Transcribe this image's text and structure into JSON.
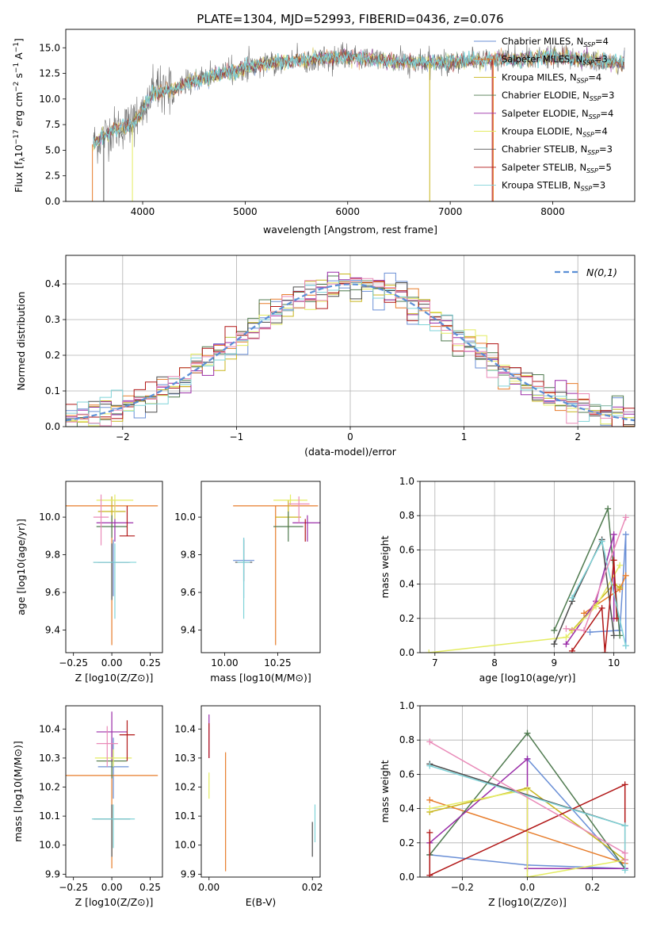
{
  "figure_title": "PLATE=1304, MJD=52993, FIBERID=0436, z=0.076",
  "colors": {
    "chabrier_miles": "#6a8fd6",
    "salpeter_miles": "#e77c2a",
    "kroupa_miles": "#c8b51c",
    "chabrier_elodie": "#4f7a4f",
    "salpeter_elodie": "#9a2ca8",
    "kroupa_elodie": "#e4ec62",
    "chabrier_stelib": "#4d4d4d",
    "salpeter_stelib": "#b11717",
    "kroupa_stelib": "#7fd3d8",
    "pink": "#e98ab8",
    "normal_curve": "#5b8fd6"
  },
  "chart_data": [
    {
      "id": "spectrum",
      "type": "line",
      "title": "PLATE=1304, MJD=52993, FIBERID=0436, z=0.076",
      "xlabel": "wavelength [Angstrom, rest frame]",
      "ylabel": "Flux [f_λ10^{-17} erg cm^{-2} s^{-1} A^{-1}]",
      "xlim": [
        3250,
        8800
      ],
      "ylim": [
        0,
        16.8
      ],
      "xticks": [
        4000,
        5000,
        6000,
        7000,
        8000
      ],
      "yticks": [
        0.0,
        2.5,
        5.0,
        7.5,
        10.0,
        12.5,
        15.0
      ],
      "grid": false,
      "legend_position": "top-right",
      "legend": [
        {
          "name": "Chabrier MILES",
          "nssp": "4"
        },
        {
          "name": "Salpeter MILES",
          "nssp": "3"
        },
        {
          "name": "Kroupa MILES",
          "nssp": "4"
        },
        {
          "name": "Chabrier ELODIE",
          "nssp": "3"
        },
        {
          "name": "Salpeter ELODIE",
          "nssp": "4"
        },
        {
          "name": "Kroupa ELODIE",
          "nssp": "4"
        },
        {
          "name": "Chabrier STELIB",
          "nssp": "3"
        },
        {
          "name": "Salpeter STELIB",
          "nssp": "5"
        },
        {
          "name": "Kroupa STELIB",
          "nssp": "3"
        }
      ],
      "continuum": {
        "x": [
          3500,
          3700,
          3900,
          4000,
          4100,
          4300,
          4500,
          4800,
          5000,
          5200,
          5500,
          5800,
          6000,
          6300,
          6500,
          6800,
          7000,
          7300,
          7600,
          8000,
          8300,
          8500,
          8700
        ],
        "y": [
          5.5,
          7.0,
          7.5,
          9.0,
          10.5,
          11.0,
          11.8,
          12.5,
          13.0,
          13.5,
          13.7,
          14.0,
          14.1,
          13.8,
          13.6,
          13.5,
          13.6,
          13.8,
          13.9,
          14.1,
          13.8,
          13.6,
          13.5
        ]
      }
    },
    {
      "id": "residuals",
      "type": "histogram",
      "xlabel": "(data-model)/error",
      "ylabel": "Normed distribution",
      "xlim": [
        -2.5,
        2.5
      ],
      "ylim": [
        0,
        0.48
      ],
      "xticks": [
        -2,
        -1,
        0,
        1,
        2
      ],
      "yticks": [
        0.0,
        0.1,
        0.2,
        0.3,
        0.4
      ],
      "grid": true,
      "legend_position": "top-right",
      "legend": [
        {
          "name": "N(0,1)"
        }
      ],
      "bins_start": -2.5,
      "bin_width": 0.1
    },
    {
      "id": "age_vs_Z",
      "type": "scatter",
      "xlabel": "Z [log10(Z/Z⊙)]",
      "ylabel": "age [log10(age/yr)]",
      "xlim": [
        -0.3,
        0.33
      ],
      "ylim": [
        9.28,
        10.19
      ],
      "xticks": [
        -0.25,
        0.0,
        0.25
      ],
      "yticks": [
        9.4,
        9.6,
        9.8,
        10.0
      ],
      "points": [
        {
          "x": 0.01,
          "xerr": 0.1,
          "y": 9.76,
          "yerr": [
            0.18,
            0.12
          ],
          "color": "chabrier_miles"
        },
        {
          "x": 0.0,
          "xerr": 0.3,
          "y": 10.06,
          "yerr": [
            0.74,
            0.0
          ],
          "color": "salpeter_miles"
        },
        {
          "x": 0.0,
          "xerr": 0.09,
          "y": 10.03,
          "yerr": [
            0.08,
            0.08
          ],
          "color": "kroupa_miles"
        },
        {
          "x": 0.0,
          "xerr": 0.1,
          "y": 9.95,
          "yerr": [
            0.06,
            0.06
          ],
          "color": "chabrier_elodie"
        },
        {
          "x": 0.02,
          "xerr": 0.12,
          "y": 9.97,
          "yerr": [
            0.1,
            0.12
          ],
          "color": "salpeter_elodie"
        },
        {
          "x": 0.02,
          "xerr": 0.12,
          "y": 10.09,
          "yerr": [
            0.1,
            0.03
          ],
          "color": "kroupa_elodie"
        },
        {
          "x": 0.0,
          "xerr": 0.12,
          "y": 9.76,
          "yerr": [
            0.2,
            0.1
          ],
          "color": "chabrier_stelib"
        },
        {
          "x": 0.1,
          "xerr": 0.05,
          "y": 9.9,
          "yerr": [
            0.0,
            0.16
          ],
          "color": "salpeter_stelib"
        },
        {
          "x": 0.02,
          "xerr": 0.14,
          "y": 9.76,
          "yerr": [
            0.3,
            0.1
          ],
          "color": "kroupa_stelib"
        },
        {
          "x": -0.07,
          "xerr": 0.05,
          "y": 10.0,
          "yerr": [
            0.15,
            0.12
          ],
          "color": "pink"
        }
      ]
    },
    {
      "id": "age_vs_mass",
      "type": "scatter",
      "xlabel": "mass [log10(M/M⊙)]",
      "ylabel": "",
      "xlim": [
        9.89,
        10.45
      ],
      "ylim": [
        9.28,
        10.19
      ],
      "xticks": [
        10.0,
        10.25
      ],
      "yticks": [
        9.4,
        9.6,
        9.8,
        10.0
      ],
      "points": [
        {
          "x": 10.09,
          "xerr": 0.05,
          "y": 9.77,
          "yerr": [
            0.2,
            0.12
          ],
          "color": "chabrier_miles"
        },
        {
          "x": 10.24,
          "xerr": 0.2,
          "y": 10.06,
          "yerr": [
            0.74,
            0.0
          ],
          "color": "salpeter_miles"
        },
        {
          "x": 10.3,
          "xerr": 0.06,
          "y": 10.0,
          "yerr": [
            0.06,
            0.09
          ],
          "color": "kroupa_miles"
        },
        {
          "x": 10.3,
          "xerr": 0.07,
          "y": 9.95,
          "yerr": [
            0.08,
            0.08
          ],
          "color": "chabrier_elodie"
        },
        {
          "x": 10.39,
          "xerr": 0.07,
          "y": 9.97,
          "yerr": [
            0.1,
            0.04
          ],
          "color": "salpeter_elodie"
        },
        {
          "x": 10.31,
          "xerr": 0.08,
          "y": 10.09,
          "yerr": [
            0.03,
            0.03
          ],
          "color": "kroupa_elodie"
        },
        {
          "x": 10.09,
          "xerr": 0.04,
          "y": 9.76,
          "yerr": [
            0.1,
            0.12
          ],
          "color": "chabrier_stelib"
        },
        {
          "x": 10.38,
          "xerr": 0.0,
          "y": 9.93,
          "yerr": [
            0.06,
            0.06
          ],
          "color": "salpeter_stelib"
        },
        {
          "x": 10.09,
          "xerr": 0.03,
          "y": 9.76,
          "yerr": [
            0.3,
            0.13
          ],
          "color": "kroupa_stelib"
        },
        {
          "x": 10.35,
          "xerr": 0.05,
          "y": 10.07,
          "yerr": [
            0.1,
            0.04
          ],
          "color": "pink"
        }
      ]
    },
    {
      "id": "weight_vs_age",
      "type": "line",
      "xlabel": "age [log10(age/yr)]",
      "ylabel": "mass weight",
      "xlim": [
        6.75,
        10.35
      ],
      "ylim": [
        0,
        1.0
      ],
      "xticks": [
        7,
        8,
        9,
        10
      ],
      "yticks": [
        0.0,
        0.2,
        0.4,
        0.6,
        0.8,
        1.0
      ],
      "grid": true,
      "series": [
        {
          "color": "chabrier_miles",
          "x": [
            9.6,
            10.1,
            10.2,
            10.2
          ],
          "y": [
            0.12,
            0.13,
            0.69,
            0.04
          ]
        },
        {
          "color": "salpeter_miles",
          "x": [
            9.5,
            10.1,
            10.2
          ],
          "y": [
            0.23,
            0.37,
            0.45
          ]
        },
        {
          "color": "kroupa_miles",
          "x": [
            9.3,
            10.0,
            10.1
          ],
          "y": [
            0.13,
            0.4,
            0.38
          ]
        },
        {
          "color": "chabrier_elodie",
          "x": [
            9.0,
            9.9,
            10.1
          ],
          "y": [
            0.13,
            0.84,
            0.1
          ]
        },
        {
          "color": "salpeter_elodie",
          "x": [
            9.2,
            9.7,
            10.0,
            10.0
          ],
          "y": [
            0.05,
            0.3,
            0.69,
            0.2
          ]
        },
        {
          "color": "kroupa_elodie",
          "x": [
            6.9,
            9.2,
            9.7,
            10.1
          ],
          "y": [
            0.0,
            0.09,
            0.27,
            0.51
          ]
        },
        {
          "color": "chabrier_stelib",
          "x": [
            9.0,
            9.3,
            9.8,
            10.0
          ],
          "y": [
            0.05,
            0.3,
            0.66,
            0.1
          ]
        },
        {
          "color": "salpeter_stelib",
          "x": [
            9.3,
            9.8,
            9.85,
            10.0,
            10.05
          ],
          "y": [
            0.01,
            0.26,
            0.0,
            0.54,
            0.2
          ]
        },
        {
          "color": "kroupa_stelib",
          "x": [
            9.3,
            9.8,
            10.2
          ],
          "y": [
            0.32,
            0.65,
            0.04
          ]
        },
        {
          "color": "pink",
          "x": [
            9.2,
            9.5,
            10.2
          ],
          "y": [
            0.14,
            0.13,
            0.79
          ]
        }
      ]
    },
    {
      "id": "mass_vs_Z",
      "type": "scatter",
      "xlabel": "Z [log10(Z/Z⊙)]",
      "ylabel": "mass [log10(M/M⊙)]",
      "xlim": [
        -0.3,
        0.33
      ],
      "ylim": [
        9.89,
        10.48
      ],
      "xticks": [
        -0.25,
        0.0,
        0.25
      ],
      "yticks": [
        9.9,
        10.0,
        10.1,
        10.2,
        10.3,
        10.4
      ],
      "points": [
        {
          "x": 0.01,
          "xerr": 0.1,
          "y": 10.27,
          "yerr": [
            0.11,
            0.1
          ],
          "color": "chabrier_miles"
        },
        {
          "x": 0.0,
          "xerr": 0.3,
          "y": 10.24,
          "yerr": [
            0.32,
            0.0
          ],
          "color": "salpeter_miles"
        },
        {
          "x": 0.0,
          "xerr": 0.09,
          "y": 10.29,
          "yerr": [
            0.06,
            0.06
          ],
          "color": "kroupa_miles"
        },
        {
          "x": 0.0,
          "xerr": 0.1,
          "y": 10.29,
          "yerr": [
            0.06,
            0.06
          ],
          "color": "chabrier_elodie"
        },
        {
          "x": 0.0,
          "xerr": 0.1,
          "y": 10.39,
          "yerr": [
            0.1,
            0.07
          ],
          "color": "salpeter_elodie"
        },
        {
          "x": 0.01,
          "xerr": 0.12,
          "y": 10.3,
          "yerr": [
            0.03,
            0.03
          ],
          "color": "kroupa_elodie"
        },
        {
          "x": 0.0,
          "xerr": 0.12,
          "y": 10.09,
          "yerr": [
            0.13,
            0.05
          ],
          "color": "chabrier_stelib"
        },
        {
          "x": 0.1,
          "xerr": 0.05,
          "y": 10.38,
          "yerr": [
            0.09,
            0.05
          ],
          "color": "salpeter_stelib"
        },
        {
          "x": 0.01,
          "xerr": 0.14,
          "y": 10.09,
          "yerr": [
            0.1,
            0.05
          ],
          "color": "kroupa_stelib"
        },
        {
          "x": -0.03,
          "xerr": 0.07,
          "y": 10.35,
          "yerr": [
            0.08,
            0.06
          ],
          "color": "pink"
        }
      ]
    },
    {
      "id": "mass_vs_ebv",
      "type": "scatter",
      "xlabel": "E(B-V)",
      "ylabel": "",
      "xlim": [
        -0.0015,
        0.0215
      ],
      "ylim": [
        9.89,
        10.48
      ],
      "xticks": [
        0.0,
        0.02
      ],
      "yticks": [
        9.9,
        10.0,
        10.1,
        10.2,
        10.3,
        10.4
      ],
      "points": [
        {
          "x": 0.02,
          "xerr": 0.0,
          "y": 10.02,
          "yerr": [
            0.06,
            0.06
          ],
          "color": "chabrier_stelib"
        },
        {
          "x": 0.0205,
          "xerr": 0.0,
          "y": 10.05,
          "yerr": [
            0.04,
            0.09
          ],
          "color": "kroupa_stelib"
        },
        {
          "x": 0.0,
          "xerr": 0.0,
          "y": 10.2,
          "yerr": [
            0.04,
            0.05
          ],
          "color": "kroupa_elodie"
        },
        {
          "x": 0.0,
          "xerr": 0.0,
          "y": 10.38,
          "yerr": [
            0.08,
            0.07
          ],
          "color": "salpeter_elodie"
        },
        {
          "x": 0.0,
          "xerr": 0.0,
          "y": 10.38,
          "yerr": [
            0.08,
            0.04
          ],
          "color": "salpeter_stelib"
        },
        {
          "x": 0.0032,
          "xerr": 0.0,
          "y": 10.1,
          "yerr": [
            0.19,
            0.22
          ],
          "color": "salpeter_miles"
        }
      ]
    },
    {
      "id": "weight_vs_Z",
      "type": "line",
      "xlabel": "Z [log10(Z/Z⊙)]",
      "ylabel": "mass weight",
      "xlim": [
        -0.33,
        0.33
      ],
      "ylim": [
        0,
        1.0
      ],
      "xticks": [
        -0.2,
        0.0,
        0.2
      ],
      "yticks": [
        0.0,
        0.2,
        0.4,
        0.6,
        0.8,
        1.0
      ],
      "grid": true,
      "series": [
        {
          "color": "chabrier_miles",
          "x": [
            -0.3,
            0.0,
            0.3,
            0.0,
            0.3
          ],
          "y": [
            0.13,
            0.07,
            0.05,
            0.69,
            0.05
          ]
        },
        {
          "color": "salpeter_miles",
          "x": [
            -0.3,
            0.3
          ],
          "y": [
            0.45,
            0.08
          ]
        },
        {
          "color": "kroupa_miles",
          "x": [
            -0.3,
            0.0,
            0.3
          ],
          "y": [
            0.38,
            0.52,
            0.1
          ]
        },
        {
          "color": "chabrier_elodie",
          "x": [
            -0.3,
            0.0,
            0.3
          ],
          "y": [
            0.13,
            0.84,
            0.05
          ]
        },
        {
          "color": "salpeter_elodie",
          "x": [
            -0.3,
            0.0,
            0.0,
            0.3
          ],
          "y": [
            0.2,
            0.69,
            0.05,
            0.05
          ]
        },
        {
          "color": "kroupa_elodie",
          "x": [
            -0.3,
            0.0,
            0.0,
            0.3
          ],
          "y": [
            0.4,
            0.51,
            0.0,
            0.1
          ]
        },
        {
          "color": "chabrier_stelib",
          "x": [
            -0.3,
            0.3
          ],
          "y": [
            0.66,
            0.3
          ]
        },
        {
          "color": "salpeter_stelib",
          "x": [
            -0.3,
            -0.3,
            0.3,
            0.3
          ],
          "y": [
            0.26,
            0.01,
            0.54,
            0.1
          ]
        },
        {
          "color": "kroupa_stelib",
          "x": [
            -0.3,
            0.3,
            0.3
          ],
          "y": [
            0.65,
            0.3,
            0.04
          ]
        },
        {
          "color": "pink",
          "x": [
            -0.3,
            0.3,
            0.3
          ],
          "y": [
            0.79,
            0.14,
            0.1
          ]
        }
      ]
    }
  ]
}
